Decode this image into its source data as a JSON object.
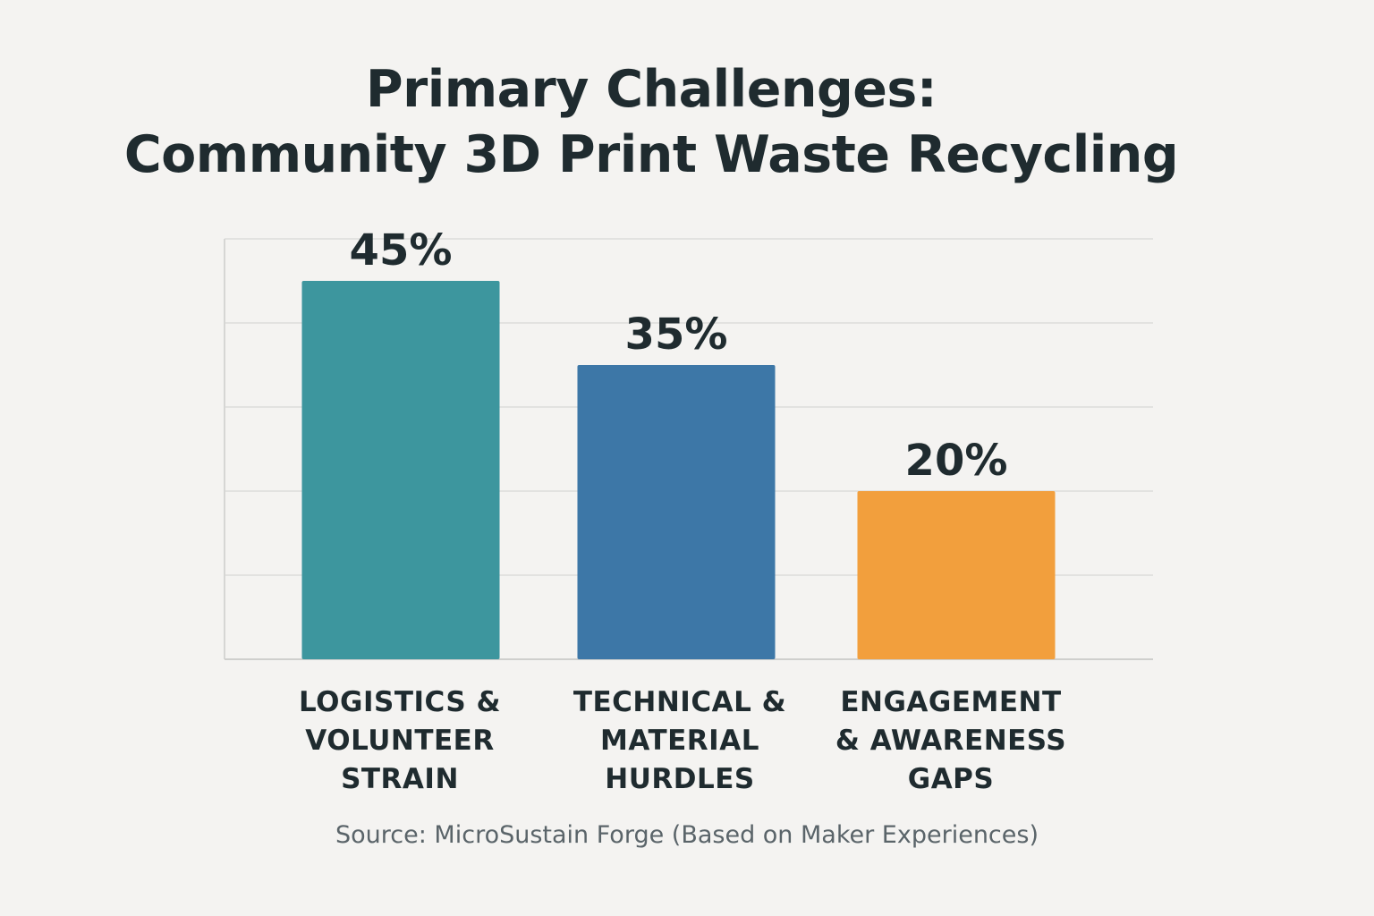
{
  "chart_data": {
    "type": "bar",
    "title_lines": [
      "Primary Challenges:",
      "Community 3D Print Waste Recycling"
    ],
    "categories": [
      [
        "LOGISTICS &",
        "VOLUNTEER",
        "STRAIN"
      ],
      [
        "TECHNICAL &",
        "MATERIAL",
        "HURDLES"
      ],
      [
        "ENGAGEMENT",
        "& AWARENESS",
        "GAPS"
      ]
    ],
    "values": [
      45,
      35,
      20
    ],
    "value_labels": [
      "45%",
      "35%",
      "20%"
    ],
    "colors": [
      "#3d969e",
      "#3d77a7",
      "#f29f3d"
    ],
    "ylim": [
      0,
      50
    ],
    "grid": true,
    "source": "Source: MicroSustain Forge (Based on Maker Experiences)"
  }
}
